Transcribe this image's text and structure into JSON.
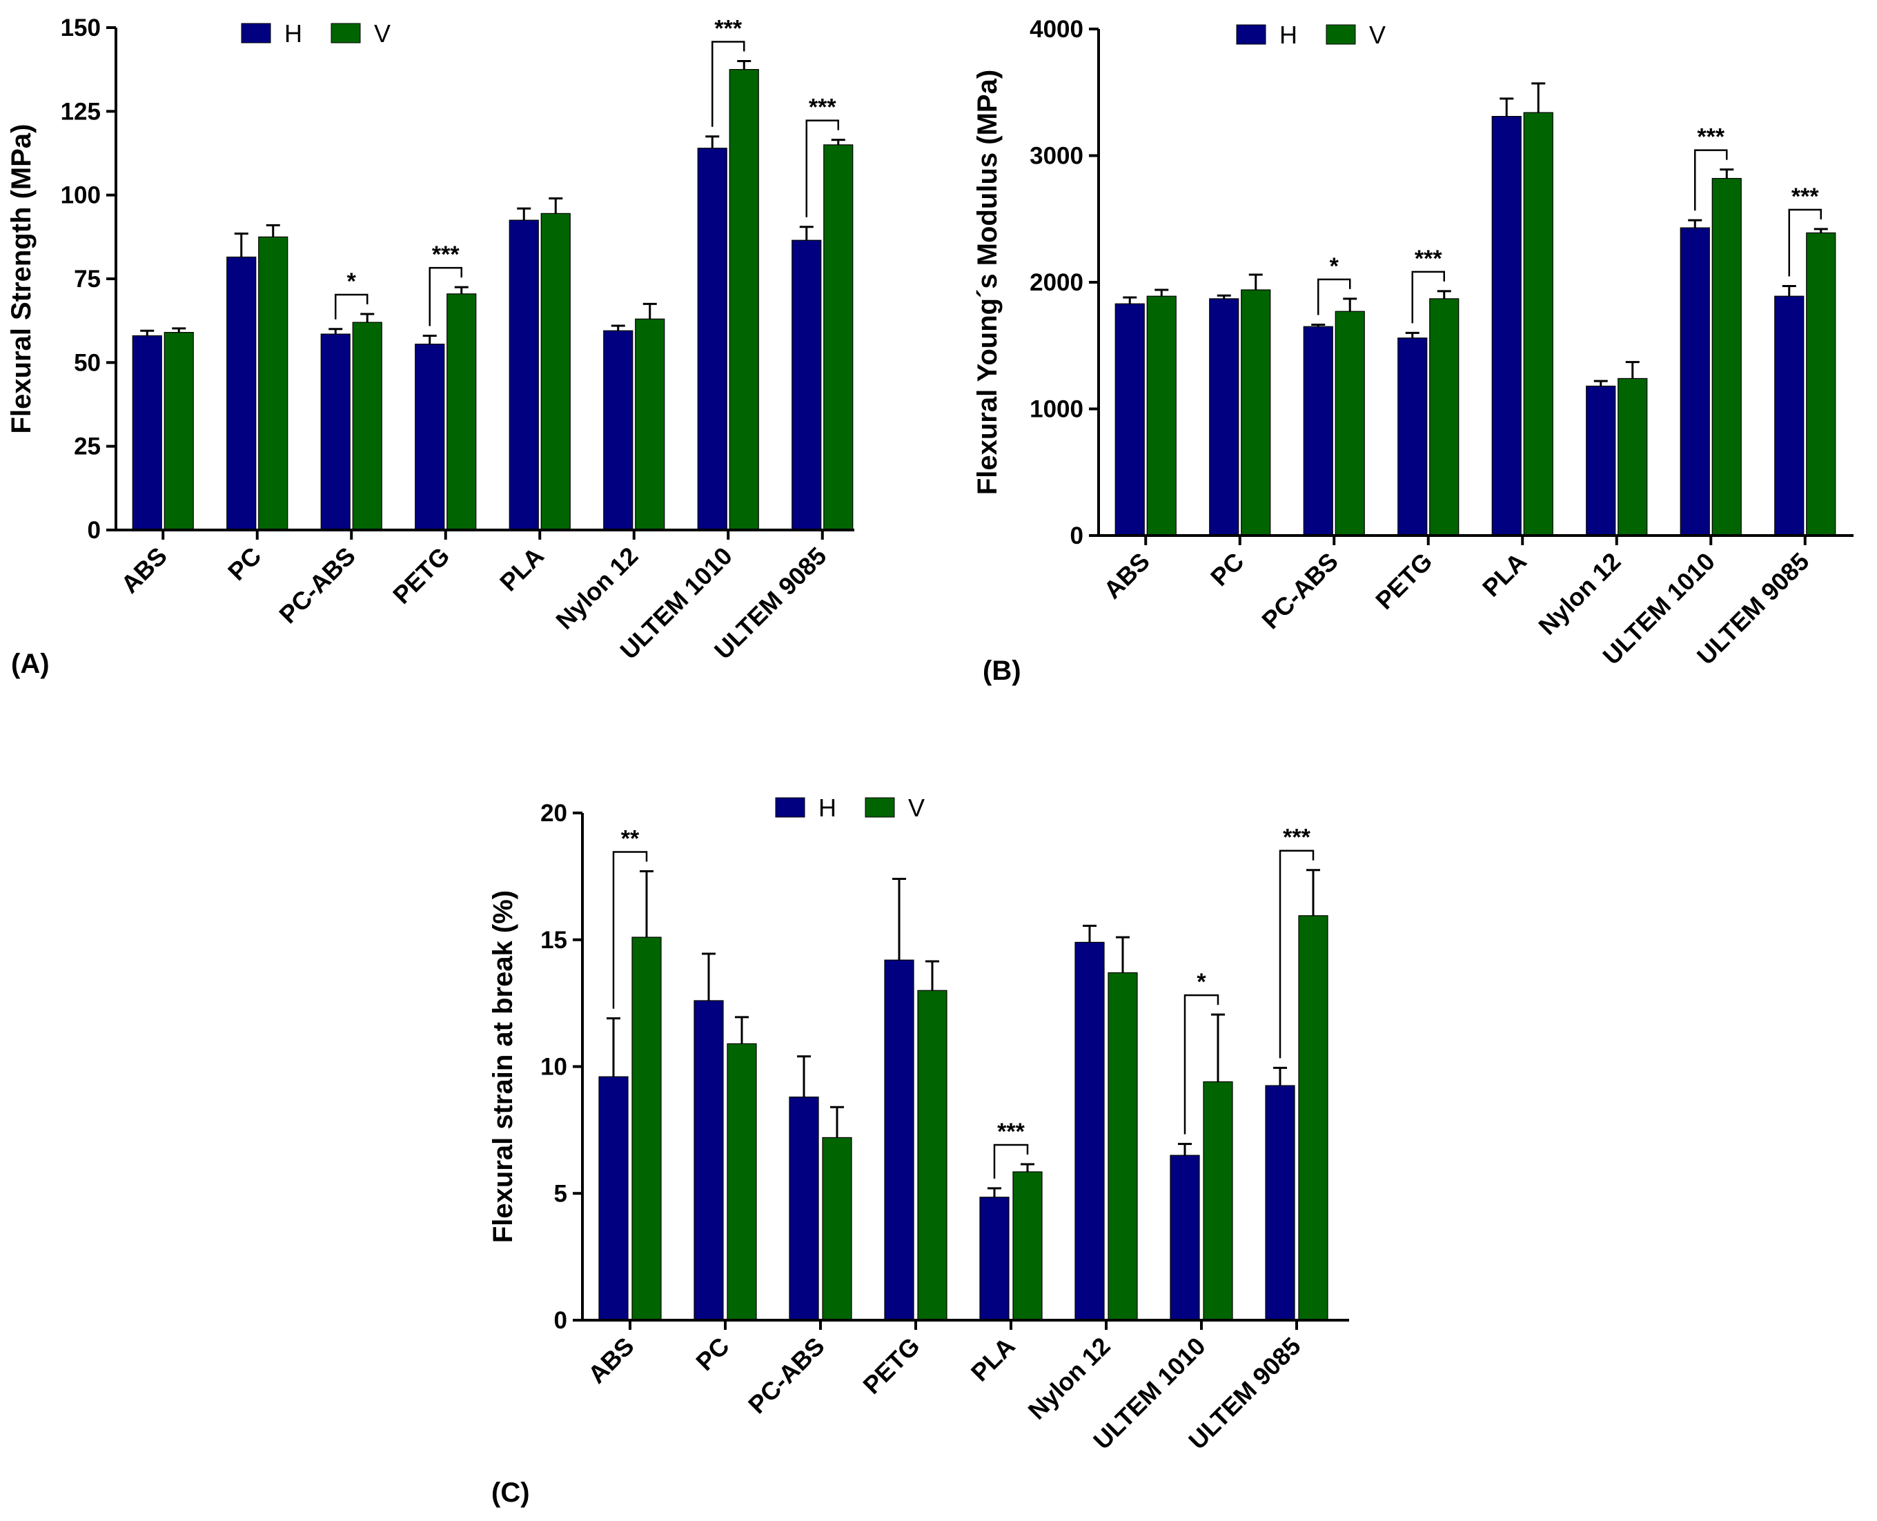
{
  "colors": {
    "H": "#000080",
    "V": "#006400",
    "axis": "#000000"
  },
  "chart_data": [
    {
      "panel": "(A)",
      "type": "bar",
      "title": "",
      "xlabel": "",
      "ylabel": "Flexural Strength (MPa)",
      "ylim": [
        0,
        150
      ],
      "yticks": [
        0,
        25,
        50,
        75,
        100,
        125,
        150
      ],
      "grid": false,
      "legend": "top",
      "categories": [
        "ABS",
        "PC",
        "PC-ABS",
        "PETG",
        "PLA",
        "Nylon 12",
        "ULTEM 1010",
        "ULTEM 9085"
      ],
      "series": [
        {
          "name": "H",
          "values": [
            58,
            81.5,
            58.5,
            55.5,
            92.5,
            59.5,
            114,
            86.5
          ],
          "errors": [
            1.5,
            7,
            1.5,
            2.5,
            3.5,
            1.5,
            3.5,
            4
          ]
        },
        {
          "name": "V",
          "values": [
            59,
            87.5,
            62,
            70.5,
            94.5,
            63,
            137.5,
            115
          ],
          "errors": [
            1.2,
            3.5,
            2.5,
            2,
            4.5,
            4.5,
            2.5,
            1.5
          ]
        }
      ],
      "annotations": [
        {
          "category": "PC-ABS",
          "text": "*"
        },
        {
          "category": "PETG",
          "text": "***"
        },
        {
          "category": "ULTEM 1010",
          "text": "***"
        },
        {
          "category": "ULTEM 9085",
          "text": "***"
        }
      ]
    },
    {
      "panel": "(B)",
      "type": "bar",
      "title": "",
      "xlabel": "",
      "ylabel": "Flexural Young´s Modulus (MPa)",
      "ylim": [
        0,
        4000
      ],
      "yticks": [
        0,
        1000,
        2000,
        3000,
        4000
      ],
      "grid": false,
      "legend": "top",
      "categories": [
        "ABS",
        "PC",
        "PC-ABS",
        "PETG",
        "PLA",
        "Nylon 12",
        "ULTEM 1010",
        "ULTEM 9085"
      ],
      "series": [
        {
          "name": "H",
          "values": [
            1830,
            1870,
            1650,
            1560,
            3310,
            1180,
            2430,
            1890
          ],
          "errors": [
            50,
            25,
            15,
            40,
            140,
            40,
            60,
            80
          ]
        },
        {
          "name": "V",
          "values": [
            1890,
            1940,
            1770,
            1870,
            3340,
            1240,
            2820,
            2390
          ],
          "errors": [
            50,
            120,
            100,
            60,
            230,
            130,
            70,
            30
          ]
        }
      ],
      "annotations": [
        {
          "category": "PC-ABS",
          "text": "*"
        },
        {
          "category": "PETG",
          "text": "***"
        },
        {
          "category": "ULTEM 1010",
          "text": "***"
        },
        {
          "category": "ULTEM 9085",
          "text": "***"
        }
      ]
    },
    {
      "panel": "(C)",
      "type": "bar",
      "title": "",
      "xlabel": "",
      "ylabel": "Flexural strain at break (%)",
      "ylim": [
        0,
        20
      ],
      "yticks": [
        0,
        5,
        10,
        15,
        20
      ],
      "grid": false,
      "legend": "top",
      "categories": [
        "ABS",
        "PC",
        "PC-ABS",
        "PETG",
        "PLA",
        "Nylon 12",
        "ULTEM 1010",
        "ULTEM 9085"
      ],
      "series": [
        {
          "name": "H",
          "values": [
            9.6,
            12.6,
            8.8,
            14.2,
            4.85,
            14.9,
            6.5,
            9.25
          ],
          "errors": [
            2.3,
            1.85,
            1.6,
            3.2,
            0.35,
            0.65,
            0.45,
            0.7
          ]
        },
        {
          "name": "V",
          "values": [
            15.1,
            10.9,
            7.2,
            13,
            5.85,
            13.7,
            9.4,
            15.95
          ],
          "errors": [
            2.6,
            1.05,
            1.2,
            1.15,
            0.3,
            1.4,
            2.65,
            1.8
          ]
        }
      ],
      "annotations": [
        {
          "category": "ABS",
          "text": "**"
        },
        {
          "category": "PLA",
          "text": "***"
        },
        {
          "category": "ULTEM 1010",
          "text": "*"
        },
        {
          "category": "ULTEM 9085",
          "text": "***"
        }
      ]
    }
  ]
}
